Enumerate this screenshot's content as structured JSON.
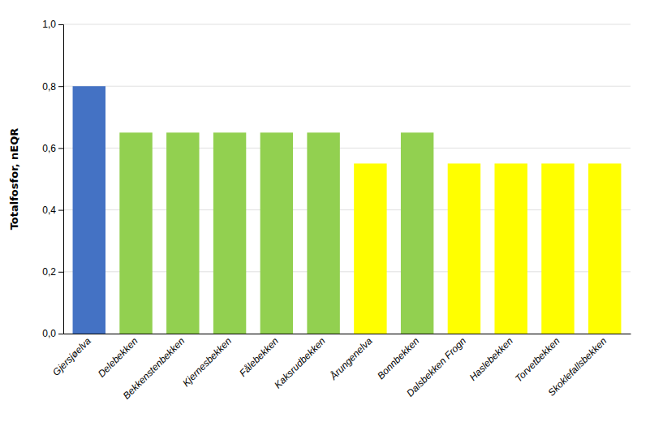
{
  "chart_data": {
    "type": "bar",
    "categories": [
      "Gjersjøelva",
      "Delebekken",
      "Bekkenstenbekken",
      "Kjernesbekken",
      "Fålebekken",
      "Kaksrudbekken",
      "Årungenelva",
      "Bonnbekken",
      "Dalsbekken Frogn",
      "Haslebekken",
      "Torvetbekken",
      "Skoklefallsbekken"
    ],
    "values": [
      0.8,
      0.65,
      0.65,
      0.65,
      0.65,
      0.65,
      0.55,
      0.65,
      0.55,
      0.55,
      0.55,
      0.55
    ],
    "colors": [
      "#4472C4",
      "#92D050",
      "#92D050",
      "#92D050",
      "#92D050",
      "#92D050",
      "#FFFF00",
      "#92D050",
      "#FFFF00",
      "#FFFF00",
      "#FFFF00",
      "#FFFF00"
    ],
    "ylabel": "Totalfosfor, nEQR",
    "ylim": [
      0.0,
      1.0
    ],
    "yticks": [
      {
        "value": 0.0,
        "label": "0,0"
      },
      {
        "value": 0.2,
        "label": "0,2"
      },
      {
        "value": 0.4,
        "label": "0,4"
      },
      {
        "value": 0.6,
        "label": "0,6"
      },
      {
        "value": 0.8,
        "label": "0,8"
      },
      {
        "value": 1.0,
        "label": "1,0"
      }
    ],
    "grid": true
  }
}
